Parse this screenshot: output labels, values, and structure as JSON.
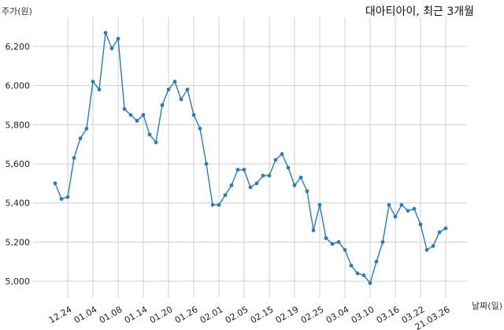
{
  "chart_data": {
    "type": "line",
    "title": "대아티아이, 최근 3개월",
    "ylabel": "주가(원)",
    "xlabel": "날짜(일)",
    "ylim": [
      4950,
      6300
    ],
    "yticks": [
      5000,
      5200,
      5400,
      5600,
      5800,
      6000,
      6200
    ],
    "ytick_labels": [
      "5,000",
      "5,200",
      "5,400",
      "5,600",
      "5,800",
      "6,000",
      "6,200"
    ],
    "xtick_labels": [
      "12.24",
      "01.04",
      "01.08",
      "01.14",
      "01.20",
      "01.26",
      "02.01",
      "02.05",
      "02.15",
      "02.19",
      "02.25",
      "03.04",
      "03.10",
      "03.16",
      "03.22",
      "21.03.26"
    ],
    "xtick_index": [
      2,
      6,
      10,
      14,
      18,
      22,
      26,
      30,
      34,
      38,
      42,
      46,
      50,
      54,
      58,
      62
    ],
    "grid": true,
    "line_color": "#2e7bb0",
    "series": [
      {
        "values": [
          5500,
          5420,
          5430,
          5630,
          5730,
          5780,
          6020,
          5980,
          6270,
          6190,
          6240,
          5880,
          5850,
          5820,
          5850,
          5750,
          5710,
          5900,
          5980,
          6020,
          5930,
          5980,
          5850,
          5780,
          5600,
          5390,
          5390,
          5440,
          5490,
          5570,
          5570,
          5480,
          5500,
          5540,
          5540,
          5620,
          5650,
          5580,
          5490,
          5530,
          5460,
          5260,
          5390,
          5220,
          5190,
          5200,
          5160,
          5080,
          5040,
          5030,
          4990,
          5100,
          5200,
          5390,
          5330,
          5390,
          5360,
          5370,
          5290,
          5160,
          5180,
          5250,
          5270
        ]
      }
    ]
  }
}
